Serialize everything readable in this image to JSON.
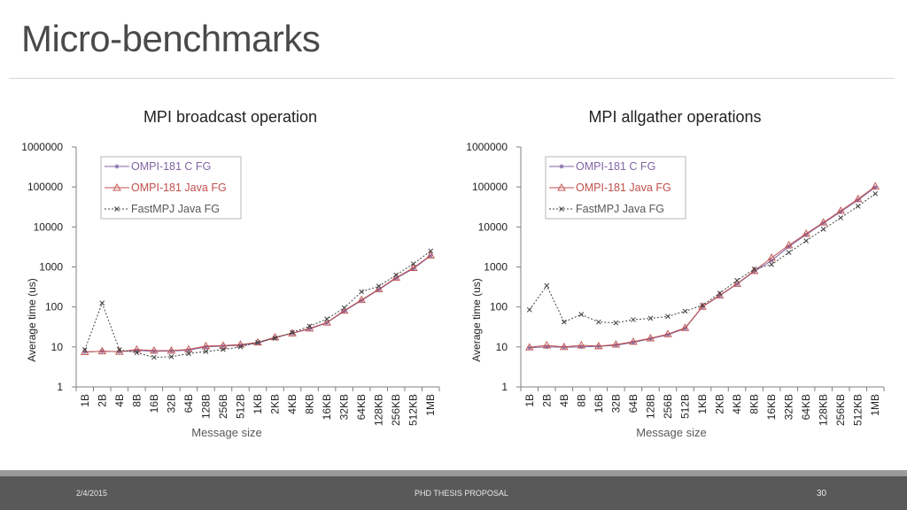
{
  "slide": {
    "title": "Micro-benchmarks",
    "footer": {
      "date": "2/4/2015",
      "center": "PHD THESIS PROPOSAL",
      "page": "30"
    }
  },
  "colors": {
    "c": "#8064a2",
    "java": "#c0504d",
    "fast": "#404040",
    "axis": "#808080",
    "text": "#222222"
  },
  "chart_data": [
    {
      "type": "line",
      "title": "MPI broadcast operation",
      "xlabel": "Message size",
      "ylabel": "Average time (us)",
      "yscale": "log",
      "ylim": [
        1,
        1000000
      ],
      "yticks": [
        "1",
        "10",
        "100",
        "1000",
        "10000",
        "100000",
        "1000000"
      ],
      "categories": [
        "1B",
        "2B",
        "4B",
        "8B",
        "16B",
        "32B",
        "64B",
        "128B",
        "256B",
        "512B",
        "1KB",
        "2KB",
        "4KB",
        "8KB",
        "16KB",
        "32KB",
        "64KB",
        "128KB",
        "256KB",
        "512KB",
        "1MB"
      ],
      "legend_position": "top-left",
      "series": [
        {
          "name": "OMPI-181 C FG",
          "key": "c",
          "marker": "star",
          "values": [
            7.5,
            7.8,
            7.6,
            8.2,
            7.8,
            7.9,
            8.3,
            10,
            10.5,
            11,
            12.5,
            17,
            22,
            28,
            40,
            78,
            145,
            270,
            520,
            900,
            1900
          ]
        },
        {
          "name": "OMPI-181 Java FG",
          "key": "java",
          "marker": "triangle",
          "values": [
            7.5,
            7.8,
            7.6,
            8.6,
            8.1,
            8.1,
            8.7,
            10.5,
            10.8,
            11.5,
            13,
            17.5,
            22,
            29,
            41,
            81,
            150,
            280,
            540,
            950,
            1950
          ]
        },
        {
          "name": "FastMPJ Java FG",
          "key": "fast",
          "marker": "x",
          "values": [
            8.5,
            125,
            8.5,
            7.2,
            5.5,
            5.7,
            6.8,
            7.7,
            8.6,
            10,
            13,
            16.5,
            23,
            33,
            50,
            95,
            240,
            330,
            630,
            1200,
            2500
          ]
        }
      ]
    },
    {
      "type": "line",
      "title": "MPI allgather operations",
      "xlabel": "Message size",
      "ylabel": "Average time (us)",
      "yscale": "log",
      "ylim": [
        1,
        1000000
      ],
      "yticks": [
        "1",
        "10",
        "100",
        "1000",
        "10000",
        "100000",
        "1000000"
      ],
      "categories": [
        "1B",
        "2B",
        "4B",
        "8B",
        "16B",
        "32B",
        "64B",
        "128B",
        "256B",
        "512B",
        "1KB",
        "2KB",
        "4KB",
        "8KB",
        "16KB",
        "32KB",
        "64KB",
        "128KB",
        "256KB",
        "512KB",
        "1MB"
      ],
      "legend_position": "top-left",
      "series": [
        {
          "name": "OMPI-181 C FG",
          "key": "c",
          "marker": "star",
          "values": [
            9.5,
            10,
            9.8,
            10,
            10.3,
            11,
            13,
            16,
            20,
            29,
            100,
            190,
            370,
            770,
            1450,
            3200,
            6400,
            12500,
            24000,
            47000,
            98000
          ]
        },
        {
          "name": "OMPI-181 Java FG",
          "key": "java",
          "marker": "triangle",
          "values": [
            9.8,
            11,
            10,
            11,
            10.5,
            11.5,
            13.5,
            16.5,
            21,
            30,
            102,
            195,
            380,
            800,
            1700,
            3500,
            6800,
            13000,
            25500,
            50000,
            104000
          ]
        },
        {
          "name": "FastMPJ Java FG",
          "key": "fast",
          "marker": "x",
          "values": [
            85,
            340,
            42,
            65,
            42,
            40,
            48,
            52,
            58,
            78,
            110,
            220,
            460,
            880,
            1150,
            2300,
            4500,
            8800,
            17000,
            33000,
            68000
          ]
        }
      ]
    }
  ]
}
